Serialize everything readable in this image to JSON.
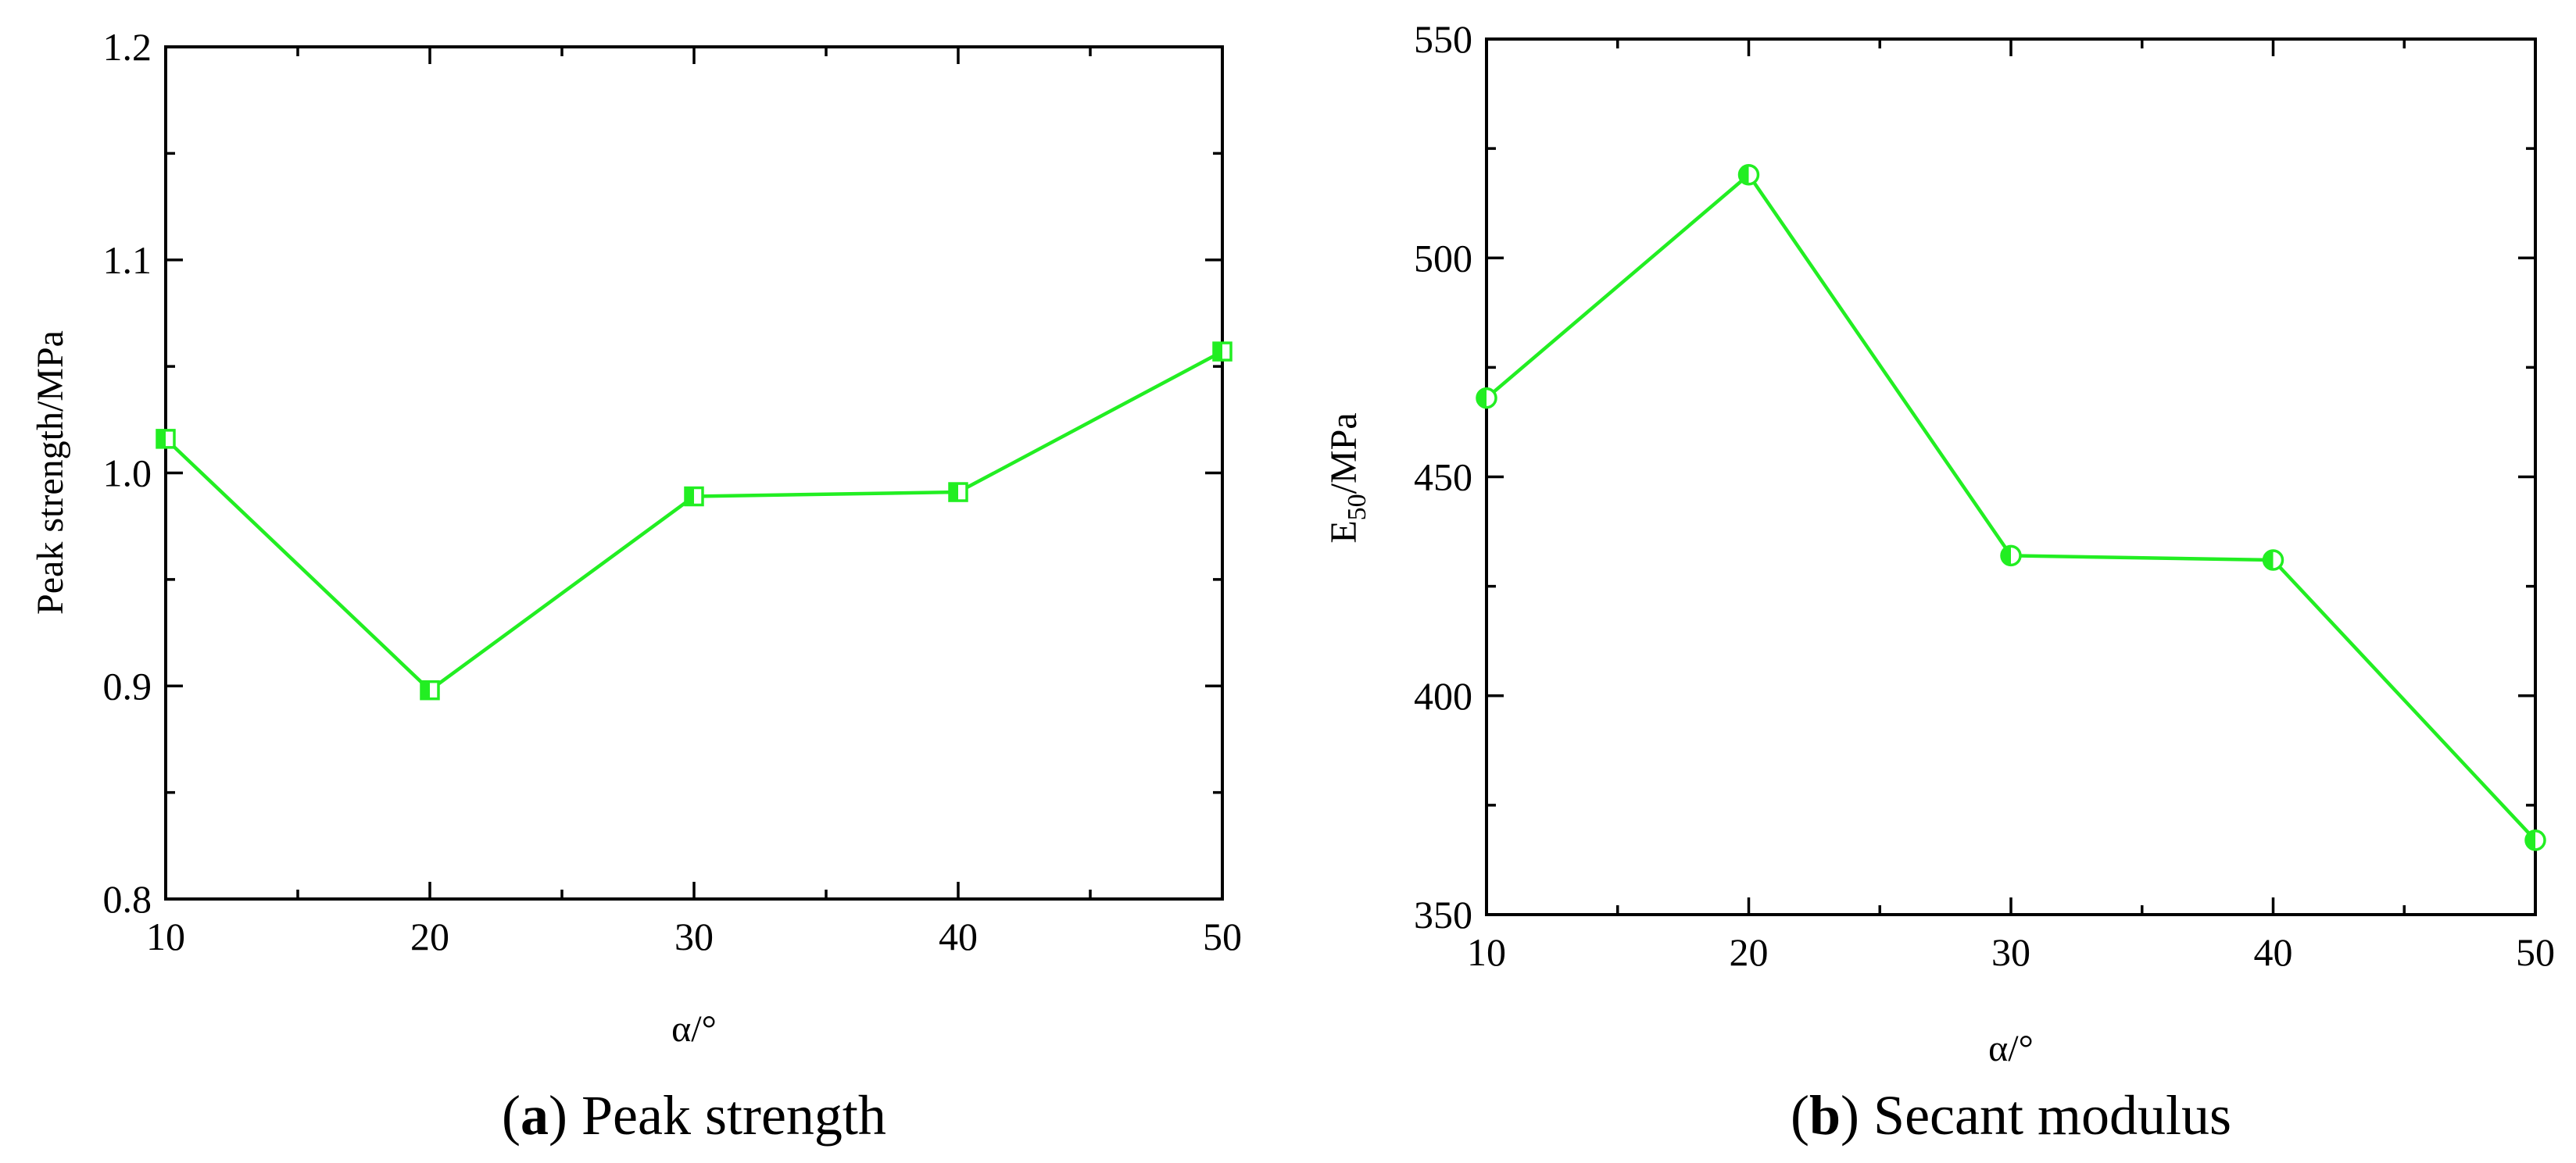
{
  "colors": {
    "series": "#22ee22",
    "axes": "#000000",
    "background": "#ffffff"
  },
  "chart_data": [
    {
      "type": "line",
      "caption": {
        "prefix": "(",
        "letter": "a",
        "suffix": ") Peak strength"
      },
      "xlabel": "α/°",
      "ylabel": "Peak strength/MPa",
      "x": [
        10,
        20,
        30,
        40,
        50
      ],
      "series": [
        {
          "values": [
            1.016,
            0.898,
            0.989,
            0.991,
            1.057
          ],
          "marker": "square-half"
        }
      ],
      "xlim": [
        10,
        50
      ],
      "ylim": [
        0.8,
        1.2
      ],
      "xticks": [
        10,
        20,
        30,
        40,
        50
      ],
      "xtick_labels": [
        "10",
        "20",
        "30",
        "40",
        "50"
      ],
      "yticks": [
        0.8,
        0.9,
        1.0,
        1.1,
        1.2
      ],
      "ytick_labels": [
        "0.8",
        "0.9",
        "1.0",
        "1.1",
        "1.2"
      ],
      "grid": false
    },
    {
      "type": "line",
      "caption": {
        "prefix": "(",
        "letter": "b",
        "suffix": ") Secant modulus"
      },
      "xlabel": "α/°",
      "ylabel_main": "E",
      "ylabel_sub": "50",
      "ylabel_rest": "/MPa",
      "x": [
        10,
        20,
        30,
        40,
        50
      ],
      "series": [
        {
          "values": [
            468,
            519,
            432,
            431,
            367
          ],
          "marker": "circle-half"
        }
      ],
      "xlim": [
        10,
        50
      ],
      "ylim": [
        350,
        550
      ],
      "xticks": [
        10,
        20,
        30,
        40,
        50
      ],
      "xtick_labels": [
        "10",
        "20",
        "30",
        "40",
        "50"
      ],
      "yticks": [
        350,
        400,
        450,
        500,
        550
      ],
      "ytick_labels": [
        "350",
        "400",
        "450",
        "500",
        "550"
      ],
      "grid": false
    }
  ]
}
